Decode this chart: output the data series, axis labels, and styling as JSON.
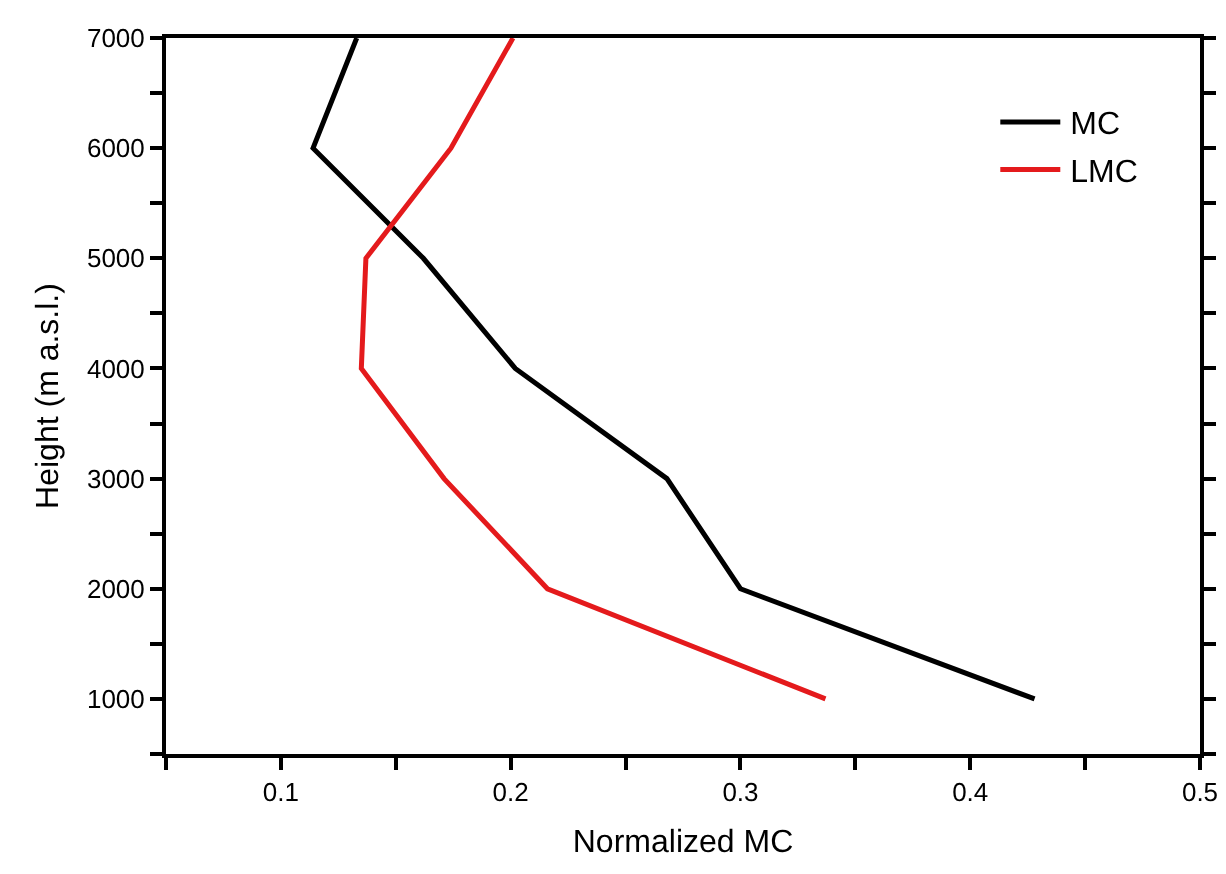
{
  "chart_data": {
    "type": "line",
    "xlabel": "Normalized MC",
    "ylabel": "Height (m a.s.l.)",
    "series": [
      {
        "name": "MC",
        "color": "#000000",
        "x": [
          0.133,
          0.114,
          0.162,
          0.202,
          0.268,
          0.3,
          0.428
        ],
        "values": [
          7000,
          6000,
          5000,
          4000,
          3000,
          2000,
          1000
        ]
      },
      {
        "name": "LMC",
        "color": "#e41a1c",
        "x": [
          0.201,
          0.174,
          0.137,
          0.135,
          0.171,
          0.216,
          0.337
        ],
        "values": [
          7000,
          6000,
          5000,
          4000,
          3000,
          2000,
          1000
        ]
      }
    ],
    "xlim": [
      0.05,
      0.5
    ],
    "xticks": [
      {
        "value": 0.05,
        "label": null
      },
      0.1,
      {
        "value": 0.15,
        "label": null
      },
      0.2,
      {
        "value": 0.25,
        "label": null
      },
      0.3,
      {
        "value": 0.35,
        "label": null
      },
      0.4,
      {
        "value": 0.45,
        "label": null
      },
      0.5
    ],
    "ylim": [
      500,
      7000
    ],
    "yticks": [
      {
        "value": 500,
        "label": null
      },
      1000,
      {
        "value": 1500,
        "label": null
      },
      2000,
      {
        "value": 2500,
        "label": null
      },
      3000,
      {
        "value": 3500,
        "label": null
      },
      4000,
      {
        "value": 4500,
        "label": null
      },
      5000,
      {
        "value": 5500,
        "label": null
      },
      6000,
      {
        "value": 6500,
        "label": null
      },
      7000
    ],
    "grid": false,
    "legend": "top right",
    "marker": "none",
    "line_style": "solid"
  }
}
